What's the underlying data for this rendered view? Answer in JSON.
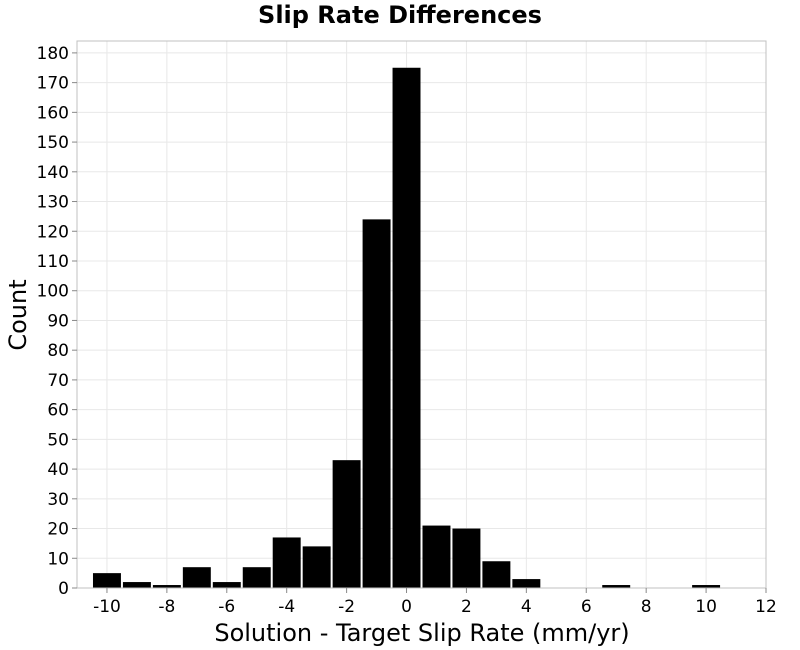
{
  "chart_data": {
    "type": "bar",
    "title": "Slip Rate Differences",
    "xlabel": "Solution - Target Slip Rate (mm/yr)",
    "ylabel": "Count",
    "xlim": [
      -11,
      12
    ],
    "ylim": [
      0,
      184
    ],
    "xticks": [
      -10,
      -8,
      -6,
      -4,
      -2,
      0,
      2,
      4,
      6,
      8,
      10,
      12
    ],
    "xtick_labels": [
      "-10",
      "-8",
      "-6",
      "-4",
      "-2",
      "0",
      "2",
      "4",
      "6",
      "8",
      "10",
      "12"
    ],
    "yticks": [
      0,
      10,
      20,
      30,
      40,
      50,
      60,
      70,
      80,
      90,
      100,
      110,
      120,
      130,
      140,
      150,
      160,
      170,
      180
    ],
    "ytick_labels": [
      "0",
      "10",
      "20",
      "30",
      "40",
      "50",
      "60",
      "70",
      "80",
      "90",
      "100",
      "110",
      "120",
      "130",
      "140",
      "150",
      "160",
      "170",
      "180"
    ],
    "bin_width": 1,
    "bar_color": "#000000",
    "grid": true,
    "bins": [
      {
        "x": -10,
        "count": 5
      },
      {
        "x": -9,
        "count": 2
      },
      {
        "x": -8,
        "count": 1
      },
      {
        "x": -7,
        "count": 7
      },
      {
        "x": -6,
        "count": 2
      },
      {
        "x": -5,
        "count": 7
      },
      {
        "x": -4,
        "count": 17
      },
      {
        "x": -3,
        "count": 14
      },
      {
        "x": -2,
        "count": 43
      },
      {
        "x": -1,
        "count": 124
      },
      {
        "x": 0,
        "count": 175
      },
      {
        "x": 1,
        "count": 21
      },
      {
        "x": 2,
        "count": 20
      },
      {
        "x": 3,
        "count": 9
      },
      {
        "x": 4,
        "count": 3
      },
      {
        "x": 7,
        "count": 1
      },
      {
        "x": 10,
        "count": 1
      }
    ]
  }
}
